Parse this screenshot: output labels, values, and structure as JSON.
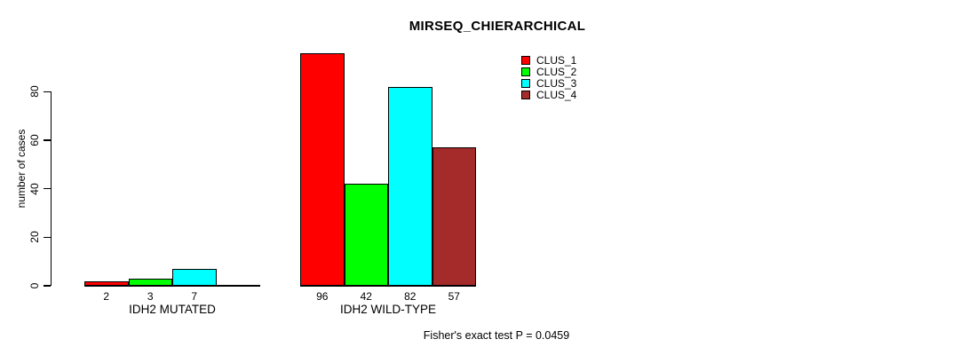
{
  "chart_data": {
    "type": "bar",
    "title": "MIRSEQ_CHIERARCHICAL",
    "ylabel": "number of cases",
    "xlabel": "",
    "ylim": [
      0,
      80
    ],
    "yticks": [
      0,
      20,
      40,
      60,
      80
    ],
    "grid": false,
    "legend_position": "top-right",
    "categories": [
      "IDH2 MUTATED",
      "IDH2 WILD-TYPE"
    ],
    "series": [
      {
        "name": "CLUS_1",
        "color": "#ff0000",
        "values": [
          2,
          96
        ]
      },
      {
        "name": "CLUS_2",
        "color": "#00ff00",
        "values": [
          3,
          42
        ]
      },
      {
        "name": "CLUS_3",
        "color": "#00ffff",
        "values": [
          7,
          82
        ]
      },
      {
        "name": "CLUS_4",
        "color": "#a52a2a",
        "values": [
          0,
          57
        ]
      }
    ],
    "bar_value_labels": [
      [
        "2",
        "3",
        "7",
        ""
      ],
      [
        "96",
        "42",
        "82",
        "57"
      ]
    ],
    "annotation": "Fisher's exact test P = 0.0459"
  }
}
